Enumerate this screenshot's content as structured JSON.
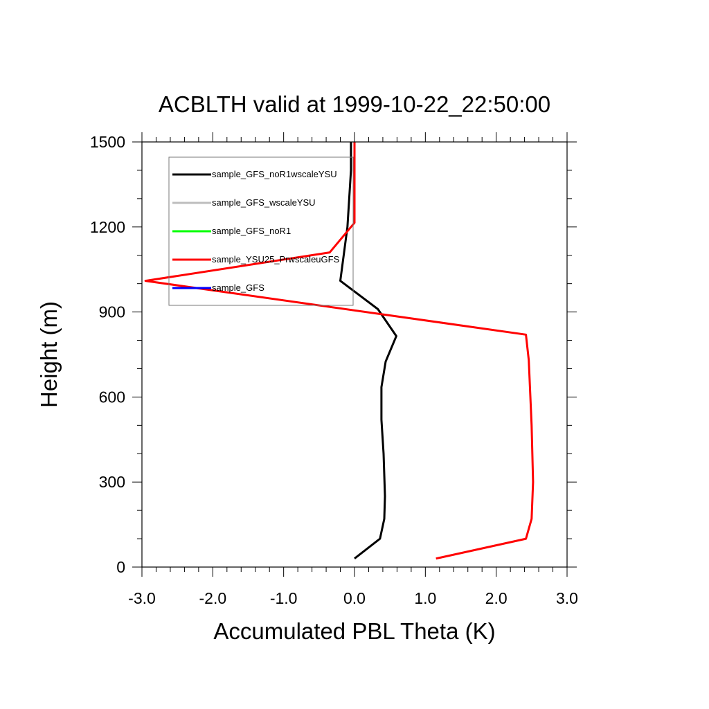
{
  "chart_data": {
    "type": "line",
    "title": "ACBLTH valid at 1999-10-22_22:50:00",
    "xlabel": "Accumulated PBL Theta (K)",
    "ylabel": "Height (m)",
    "xlim": [
      -3.0,
      3.0
    ],
    "ylim": [
      0,
      1500
    ],
    "xticks": [
      -3.0,
      -2.0,
      -1.0,
      0.0,
      1.0,
      2.0,
      3.0
    ],
    "xtick_labels": [
      "-3.0",
      "-2.0",
      "-1.0",
      "0.0",
      "1.0",
      "2.0",
      "3.0"
    ],
    "yticks": [
      0,
      300,
      600,
      900,
      1200,
      1500
    ],
    "ytick_labels": [
      "0",
      "300",
      "600",
      "900",
      "1200",
      "1500"
    ],
    "grid": false,
    "legend_position": "top-left",
    "series": [
      {
        "name": "sample_GFS_noR1wscaleYSU",
        "color": "#000000",
        "points": [
          [
            0.0,
            30
          ],
          [
            0.36,
            100
          ],
          [
            0.42,
            170
          ],
          [
            0.43,
            250
          ],
          [
            0.41,
            400
          ],
          [
            0.38,
            520
          ],
          [
            0.38,
            635
          ],
          [
            0.44,
            725
          ],
          [
            0.59,
            815
          ],
          [
            0.33,
            910
          ],
          [
            -0.2,
            1010
          ],
          [
            -0.1,
            1200
          ],
          [
            -0.05,
            1400
          ],
          [
            -0.05,
            1500
          ]
        ]
      },
      {
        "name": "sample_GFS_wscaleYSU",
        "color": "#bdbdbd",
        "points": []
      },
      {
        "name": "sample_GFS_noR1",
        "color": "#00ff00",
        "points": []
      },
      {
        "name": "sample_YSU25_PrwscaleuGFS",
        "color": "#ff0000",
        "points": [
          [
            1.15,
            30
          ],
          [
            2.42,
            100
          ],
          [
            2.5,
            170
          ],
          [
            2.52,
            300
          ],
          [
            2.5,
            500
          ],
          [
            2.46,
            730
          ],
          [
            2.42,
            820
          ],
          [
            -2.95,
            1010
          ],
          [
            -0.35,
            1110
          ],
          [
            0.0,
            1215
          ],
          [
            0.0,
            1500
          ]
        ]
      },
      {
        "name": "sample_GFS",
        "color": "#0000ff",
        "points": []
      }
    ]
  }
}
